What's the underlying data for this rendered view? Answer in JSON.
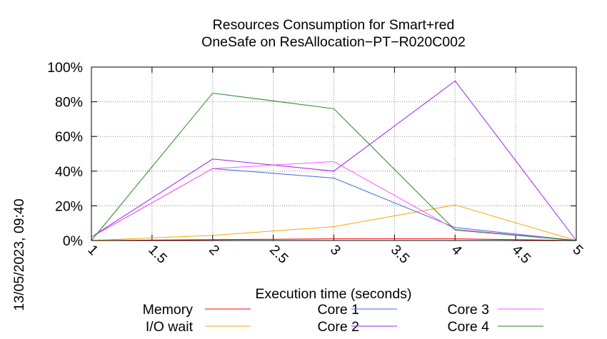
{
  "side_label": "13/05/2023, 09:40",
  "chart_data": {
    "type": "line",
    "title_line1": "Resources Consumption for Smart+red",
    "title_line2": "OneSafe on ResAllocation−PT−R020C002",
    "xlabel": "Execution time (seconds)",
    "ylabel": "",
    "xlim": [
      1,
      5
    ],
    "ylim": [
      0,
      100
    ],
    "x_ticks": [
      "1",
      "1.5",
      "2",
      "2.5",
      "3",
      "3.5",
      "4",
      "4.5",
      "5"
    ],
    "x_tick_values": [
      1,
      1.5,
      2,
      2.5,
      3,
      3.5,
      4,
      4.5,
      5
    ],
    "y_ticks": [
      "0%",
      "20%",
      "40%",
      "60%",
      "80%",
      "100%"
    ],
    "y_tick_values": [
      0,
      20,
      40,
      60,
      80,
      100
    ],
    "grid": true,
    "legend_placement": "bottom",
    "x": [
      1,
      2,
      3,
      4,
      5
    ],
    "series": [
      {
        "name": "Memory",
        "color": "#ff0000",
        "values": [
          0,
          0.5,
          1,
          1,
          0
        ]
      },
      {
        "name": "I/O wait",
        "color": "#ffa500",
        "values": [
          0,
          3,
          8,
          20.5,
          0
        ]
      },
      {
        "name": "Core 1",
        "color": "#4169e1",
        "values": [
          2,
          41.5,
          36,
          7.5,
          0
        ]
      },
      {
        "name": "Core 2",
        "color": "#a020f0",
        "values": [
          2,
          47,
          40,
          92,
          0
        ]
      },
      {
        "name": "Core 3",
        "color": "#ff55ff",
        "values": [
          2,
          41.5,
          45.5,
          6.5,
          0
        ]
      },
      {
        "name": "Core 4",
        "color": "#228b22",
        "values": [
          0,
          85,
          76,
          6,
          0
        ]
      }
    ]
  }
}
